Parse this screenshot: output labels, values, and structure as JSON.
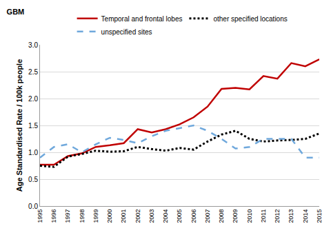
{
  "chart_data": {
    "type": "line",
    "title": "GBM",
    "y_label": "Age Standardised Rate / 100k people",
    "categories": [
      "1995",
      "1996",
      "1997",
      "1998",
      "1999",
      "2000",
      "2001",
      "2002",
      "2003",
      "2004",
      "2005",
      "2006",
      "2007",
      "2008",
      "2009",
      "2010",
      "2011",
      "2012",
      "2013",
      "2014",
      "2015"
    ],
    "series": [
      {
        "name": "Temporal and frontal lobes",
        "color": "#c00000",
        "line_style": "solid",
        "values": [
          0.77,
          0.77,
          0.93,
          0.98,
          1.1,
          1.13,
          1.17,
          1.43,
          1.37,
          1.43,
          1.52,
          1.65,
          1.85,
          2.18,
          2.2,
          2.17,
          2.42,
          2.37,
          2.66,
          2.6,
          2.73
        ]
      },
      {
        "name": "other specified locations",
        "color": "#000000",
        "line_style": "dotted",
        "values": [
          0.75,
          0.73,
          0.92,
          0.97,
          1.03,
          1.01,
          1.02,
          1.1,
          1.06,
          1.03,
          1.08,
          1.05,
          1.2,
          1.33,
          1.4,
          1.25,
          1.2,
          1.22,
          1.23,
          1.25,
          1.35
        ]
      },
      {
        "name": "unspecified sites",
        "color": "#6fa8dc",
        "line_style": "dashed",
        "values": [
          0.9,
          1.1,
          1.15,
          1.0,
          1.15,
          1.27,
          1.23,
          1.17,
          1.3,
          1.4,
          1.45,
          1.5,
          1.4,
          1.25,
          1.07,
          1.1,
          1.25,
          1.25,
          1.25,
          0.9,
          0.9
        ]
      }
    ],
    "ylim": [
      0,
      3
    ],
    "yticks": [
      {
        "value": 0,
        "label": "0.0"
      },
      0.5,
      {
        "value": 1,
        "label": "1.0"
      },
      1.5,
      {
        "value": 2,
        "label": "2.0"
      },
      2.5,
      {
        "value": 3,
        "label": "3.0"
      }
    ],
    "grid": true,
    "legend": "top"
  }
}
